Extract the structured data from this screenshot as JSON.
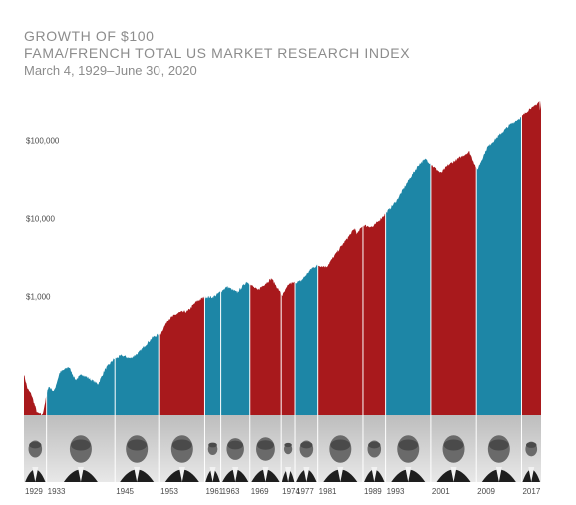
{
  "chart_data": {
    "type": "area",
    "title": "GROWTH OF $100",
    "subtitle": "FAMA/FRENCH TOTAL US MARKET RESEARCH INDEX",
    "period": "March 4, 1929–June 30, 2020",
    "y_scale": "log",
    "ylim": [
      30,
      600000
    ],
    "y_ticks": [
      {
        "value": 1000,
        "label": "$1,000"
      },
      {
        "value": 10000,
        "label": "$10,000"
      },
      {
        "value": 100000,
        "label": "$100,000"
      }
    ],
    "xlim": [
      1929.17,
      2020.5
    ],
    "series": [
      {
        "values": [
          [
            1929.17,
            100
          ],
          [
            1929.8,
            65
          ],
          [
            1930.5,
            55
          ],
          [
            1931.5,
            32
          ],
          [
            1932.45,
            30
          ],
          [
            1933.5,
            70
          ],
          [
            1934.5,
            60
          ],
          [
            1935.5,
            105
          ],
          [
            1937.1,
            125
          ],
          [
            1938.3,
            85
          ],
          [
            1939.5,
            100
          ],
          [
            1940.5,
            90
          ],
          [
            1942.3,
            75
          ],
          [
            1943.5,
            115
          ],
          [
            1945,
            155
          ],
          [
            1946.5,
            175
          ],
          [
            1948,
            160
          ],
          [
            1949.5,
            190
          ],
          [
            1950.5,
            230
          ],
          [
            1952,
            300
          ],
          [
            1953.2,
            330
          ],
          [
            1954.5,
            500
          ],
          [
            1956.5,
            620
          ],
          [
            1958,
            640
          ],
          [
            1959.5,
            850
          ],
          [
            1961,
            980
          ],
          [
            1962.5,
            980
          ],
          [
            1963,
            1030
          ],
          [
            1965,
            1330
          ],
          [
            1966.8,
            1120
          ],
          [
            1968.5,
            1550
          ],
          [
            1970.4,
            1200
          ],
          [
            1972.9,
            1700
          ],
          [
            1974.8,
            1020
          ],
          [
            1976,
            1450
          ],
          [
            1977,
            1500
          ],
          [
            1978,
            1560
          ],
          [
            1980,
            2300
          ],
          [
            1981,
            2500
          ],
          [
            1982.6,
            2400
          ],
          [
            1985,
            4200
          ],
          [
            1987.6,
            7500
          ],
          [
            1988,
            6300
          ],
          [
            1989,
            8200
          ],
          [
            1990.8,
            7800
          ],
          [
            1993,
            11500
          ],
          [
            1995,
            17000
          ],
          [
            1997,
            30000
          ],
          [
            1999,
            50000
          ],
          [
            2000.2,
            58000
          ],
          [
            2001,
            50000
          ],
          [
            2002.8,
            38000
          ],
          [
            2004,
            48000
          ],
          [
            2007.8,
            72000
          ],
          [
            2009,
            45000
          ],
          [
            2009.2,
            42000
          ],
          [
            2011,
            82000
          ],
          [
            2013,
            115000
          ],
          [
            2015,
            160000
          ],
          [
            2017,
            200000
          ],
          [
            2018.8,
            270000
          ],
          [
            2019,
            260000
          ],
          [
            2020.2,
            320000
          ],
          [
            2020.3,
            240000
          ],
          [
            2020.5,
            320000
          ]
        ]
      }
    ],
    "terms": [
      {
        "start": 1929.17,
        "end": 1933.17,
        "party": "R",
        "label": "1929"
      },
      {
        "start": 1933.17,
        "end": 1945.28,
        "party": "D",
        "label": "1933"
      },
      {
        "start": 1945.28,
        "end": 1953.05,
        "party": "D",
        "label": "1945"
      },
      {
        "start": 1953.05,
        "end": 1961.05,
        "party": "R",
        "label": "1953"
      },
      {
        "start": 1961.05,
        "end": 1963.9,
        "party": "D",
        "label": "1961"
      },
      {
        "start": 1963.9,
        "end": 1969.05,
        "party": "D",
        "label": "1963"
      },
      {
        "start": 1969.05,
        "end": 1974.6,
        "party": "R",
        "label": "1969"
      },
      {
        "start": 1974.6,
        "end": 1977.05,
        "party": "R",
        "label": "1974"
      },
      {
        "start": 1977.05,
        "end": 1981.05,
        "party": "D",
        "label": "1977"
      },
      {
        "start": 1981.05,
        "end": 1989.05,
        "party": "R",
        "label": "1981"
      },
      {
        "start": 1989.05,
        "end": 1993.05,
        "party": "R",
        "label": "1989"
      },
      {
        "start": 1993.05,
        "end": 2001.05,
        "party": "D",
        "label": "1993"
      },
      {
        "start": 2001.05,
        "end": 2009.05,
        "party": "R",
        "label": "2001"
      },
      {
        "start": 2009.05,
        "end": 2017.05,
        "party": "D",
        "label": "2009"
      },
      {
        "start": 2017.05,
        "end": 2020.5,
        "party": "R",
        "label": "2017"
      }
    ],
    "colors": {
      "R": "#a8191c",
      "D": "#1d86a6"
    }
  }
}
